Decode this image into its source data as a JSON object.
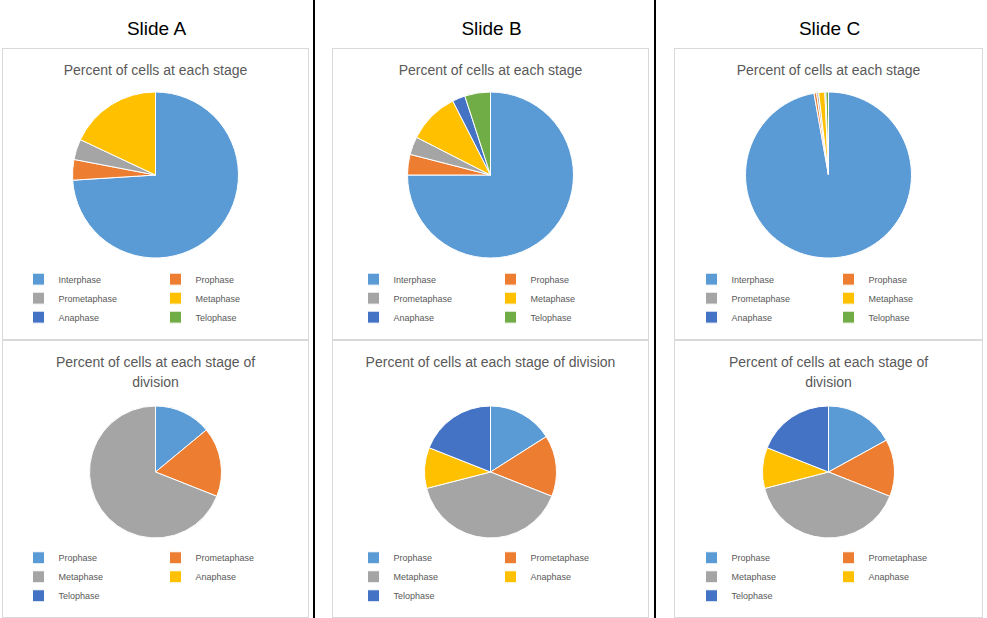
{
  "headers": [
    "Slide A",
    "Slide B",
    "Slide C"
  ],
  "chart_data": [
    {
      "type": "pie",
      "title": "Percent of cells at each stage",
      "categories": [
        "Interphase",
        "Prophase",
        "Prometaphase",
        "Metaphase",
        "Anaphase",
        "Telophase"
      ],
      "values": [
        74,
        4,
        4,
        18,
        0,
        0
      ],
      "colors": [
        "#5b9bd5",
        "#ed7d31",
        "#a5a5a5",
        "#ffc000",
        "#4472c4",
        "#70ad47"
      ],
      "legend": "bottom"
    },
    {
      "type": "pie",
      "title": "Percent of cells at each stage of division",
      "categories": [
        "Prophase",
        "Prometaphase",
        "Metaphase",
        "Anaphase",
        "Telophase"
      ],
      "values": [
        14,
        17,
        69,
        0,
        0
      ],
      "colors": [
        "#5b9bd5",
        "#ed7d31",
        "#a5a5a5",
        "#ffc000",
        "#4472c4"
      ],
      "legend": "bottom"
    },
    {
      "type": "pie",
      "title": "Percent of cells at each stage",
      "categories": [
        "Interphase",
        "Prophase",
        "Prometaphase",
        "Metaphase",
        "Anaphase",
        "Telophase"
      ],
      "values": [
        75,
        4,
        3.5,
        10,
        2.5,
        5
      ],
      "colors": [
        "#5b9bd5",
        "#ed7d31",
        "#a5a5a5",
        "#ffc000",
        "#4472c4",
        "#70ad47"
      ],
      "legend": "bottom"
    },
    {
      "type": "pie",
      "title": "Percent of cells at each stage of division",
      "categories": [
        "Prophase",
        "Prometaphase",
        "Metaphase",
        "Anaphase",
        "Telophase"
      ],
      "values": [
        16,
        15,
        40,
        10,
        19
      ],
      "colors": [
        "#5b9bd5",
        "#ed7d31",
        "#a5a5a5",
        "#ffc000",
        "#4472c4"
      ],
      "legend": "bottom"
    },
    {
      "type": "pie",
      "title": "Percent of cells at each stage",
      "categories": [
        "Interphase",
        "Prophase",
        "Prometaphase",
        "Metaphase",
        "Anaphase",
        "Telophase"
      ],
      "values": [
        97.2,
        0.5,
        0.4,
        1.2,
        0.2,
        0.5
      ],
      "colors": [
        "#5b9bd5",
        "#ed7d31",
        "#a5a5a5",
        "#ffc000",
        "#4472c4",
        "#70ad47"
      ],
      "legend": "bottom"
    },
    {
      "type": "pie",
      "title": "Percent of cells at each stage of division",
      "categories": [
        "Prophase",
        "Prometaphase",
        "Metaphase",
        "Anaphase",
        "Telophase"
      ],
      "values": [
        17,
        14,
        40,
        10,
        19
      ],
      "colors": [
        "#5b9bd5",
        "#ed7d31",
        "#a5a5a5",
        "#ffc000",
        "#4472c4"
      ],
      "legend": "bottom"
    }
  ]
}
